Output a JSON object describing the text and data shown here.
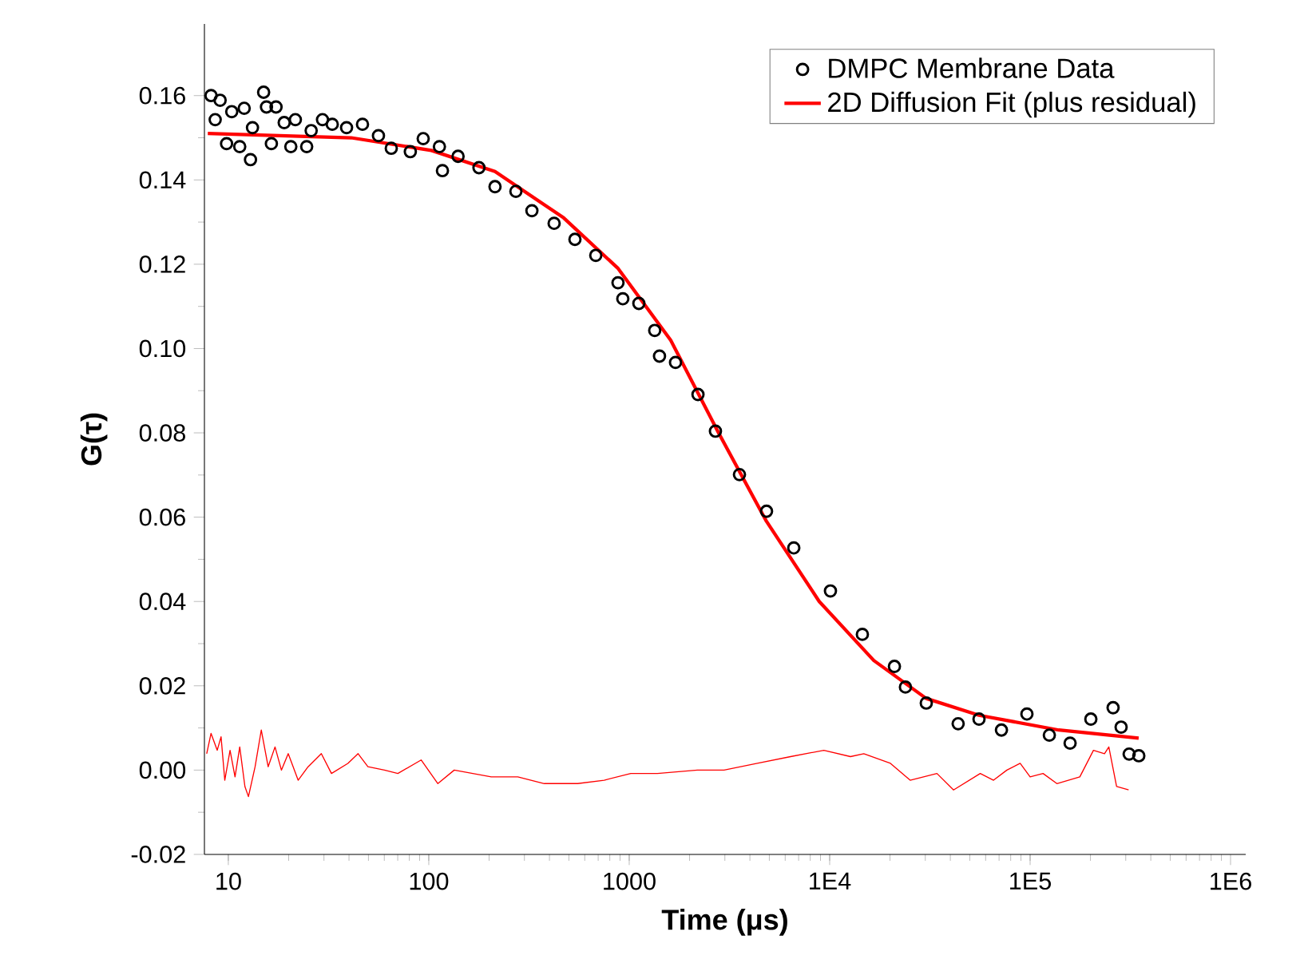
{
  "chart_data": {
    "type": "scatter",
    "xlabel": "Time (μs)",
    "ylabel": "G(τ)",
    "log": "x",
    "xlim": [
      7.6,
      1190000
    ],
    "ylim": [
      -0.02,
      0.177
    ],
    "xticks": [
      10,
      100,
      1000,
      {
        "value": 10000,
        "label": "1E4"
      },
      {
        "value": 100000,
        "label": "1E5"
      },
      {
        "value": 1000000,
        "label": "1E6"
      }
    ],
    "yticks": [
      {
        "value": -0.02,
        "label": "-0.02"
      },
      {
        "value": 0,
        "label": "0.00"
      },
      {
        "value": 0.02,
        "label": "0.02"
      },
      {
        "value": 0.04,
        "label": "0.04"
      },
      {
        "value": 0.06,
        "label": "0.06"
      },
      {
        "value": 0.08,
        "label": "0.08"
      },
      {
        "value": 0.1,
        "label": "0.10"
      },
      {
        "value": 0.12,
        "label": "0.12"
      },
      {
        "value": 0.14,
        "label": "0.14"
      },
      {
        "value": 0.16,
        "label": "0.16"
      }
    ],
    "legend": "top right",
    "grid": false,
    "series": [
      {
        "name": "DMPC Membrane Data",
        "marker": "circle",
        "color": "#000000",
        "x": [
          8.2,
          8.6,
          9.1,
          9.8,
          10.4,
          11.4,
          12.0,
          12.9,
          13.2,
          15.0,
          15.5,
          16.4,
          17.3,
          19.0,
          20.5,
          21.6,
          24.6,
          25.9,
          29.5,
          33.0,
          38.9,
          46.7,
          56.1,
          65.0,
          80.9,
          93.8,
          113,
          117,
          140,
          178,
          214,
          272,
          327,
          422,
          536,
          681,
          879,
          929,
          1117,
          1340,
          1416,
          1702,
          2203,
          2692,
          3548,
          4842,
          6622,
          10090,
          14560,
          21040,
          23880,
          30340,
          43750,
          55590,
          71940,
          96390,
          124700,
          158300,
          200900,
          259400,
          284400,
          311900,
          348500
        ],
        "values": [
          0.16,
          0.1543,
          0.1589,
          0.1486,
          0.1562,
          0.1479,
          0.157,
          0.1448,
          0.1524,
          0.1608,
          0.1573,
          0.1486,
          0.1573,
          0.1536,
          0.1479,
          0.1543,
          0.1479,
          0.1517,
          0.1543,
          0.1532,
          0.1524,
          0.1532,
          0.1505,
          0.1475,
          0.1467,
          0.1498,
          0.1479,
          0.1422,
          0.1456,
          0.1429,
          0.1384,
          0.1373,
          0.1327,
          0.1297,
          0.1259,
          0.1221,
          0.1156,
          0.1118,
          0.1107,
          0.1043,
          0.0982,
          0.0967,
          0.0891,
          0.0804,
          0.0701,
          0.0614,
          0.0527,
          0.0425,
          0.0322,
          0.0246,
          0.0197,
          0.0159,
          0.011,
          0.0121,
          0.0095,
          0.0133,
          0.0083,
          0.0064,
          0.0121,
          0.0148,
          0.0102,
          0.0038,
          0.0034
        ]
      },
      {
        "name": "2D Diffusion Fit (plus residual)",
        "type": "line",
        "line_style": "solid",
        "color": "#ff0000",
        "x": [
          7.9,
          41,
          103,
          214,
          471,
          880,
          1610,
          2790,
          4840,
          8870,
          16600,
          30300,
          55600,
          139000,
          348000
        ],
        "values": [
          0.151,
          0.15,
          0.147,
          0.142,
          0.131,
          0.119,
          0.102,
          0.08,
          0.059,
          0.04,
          0.026,
          0.017,
          0.013,
          0.0095,
          0.0076
        ]
      },
      {
        "type": "line",
        "line_style": "solid",
        "color": "#ff0000",
        "x": [
          7.8,
          8.2,
          8.8,
          9.2,
          9.6,
          10.2,
          10.8,
          11.4,
          12.1,
          12.6,
          13.6,
          14.6,
          15.8,
          17.1,
          18.4,
          19.9,
          22.3,
          25.0,
          29.1,
          32.7,
          39.5,
          44.4,
          49.7,
          60.1,
          70.1,
          91.6,
          111,
          134,
          205,
          278,
          377,
          553,
          750,
          1018,
          1383,
          2188,
          2972,
          4355,
          6383,
          9354,
          12700,
          14800,
          20100,
          25200,
          34300,
          41500,
          56400,
          65700,
          76600,
          89200,
          100000,
          116000,
          136000,
          177000,
          207000,
          235000,
          247000,
          270000,
          310000
        ],
        "values": [
          0.0039,
          0.0087,
          0.0047,
          0.0079,
          -0.0024,
          0.0047,
          -0.0016,
          0.0055,
          -0.0039,
          -0.0063,
          0.0008,
          0.0095,
          0.0008,
          0.0055,
          0,
          0.0039,
          -0.0024,
          0.0008,
          0.0039,
          -0.0008,
          0.0016,
          0.0039,
          0.0008,
          0,
          -0.0008,
          0.0024,
          -0.0032,
          0,
          -0.0016,
          -0.0016,
          -0.0032,
          -0.0032,
          -0.0024,
          -0.0008,
          -0.0008,
          0,
          0,
          0.0016,
          0.0032,
          0.0047,
          0.0032,
          0.0039,
          0.0016,
          -0.0024,
          -0.0008,
          -0.0047,
          -0.0008,
          -0.0024,
          0,
          0.0016,
          -0.0016,
          -0.0008,
          -0.0032,
          -0.0016,
          0.0047,
          0.0039,
          0.0055,
          -0.0039,
          -0.0047
        ]
      }
    ]
  }
}
